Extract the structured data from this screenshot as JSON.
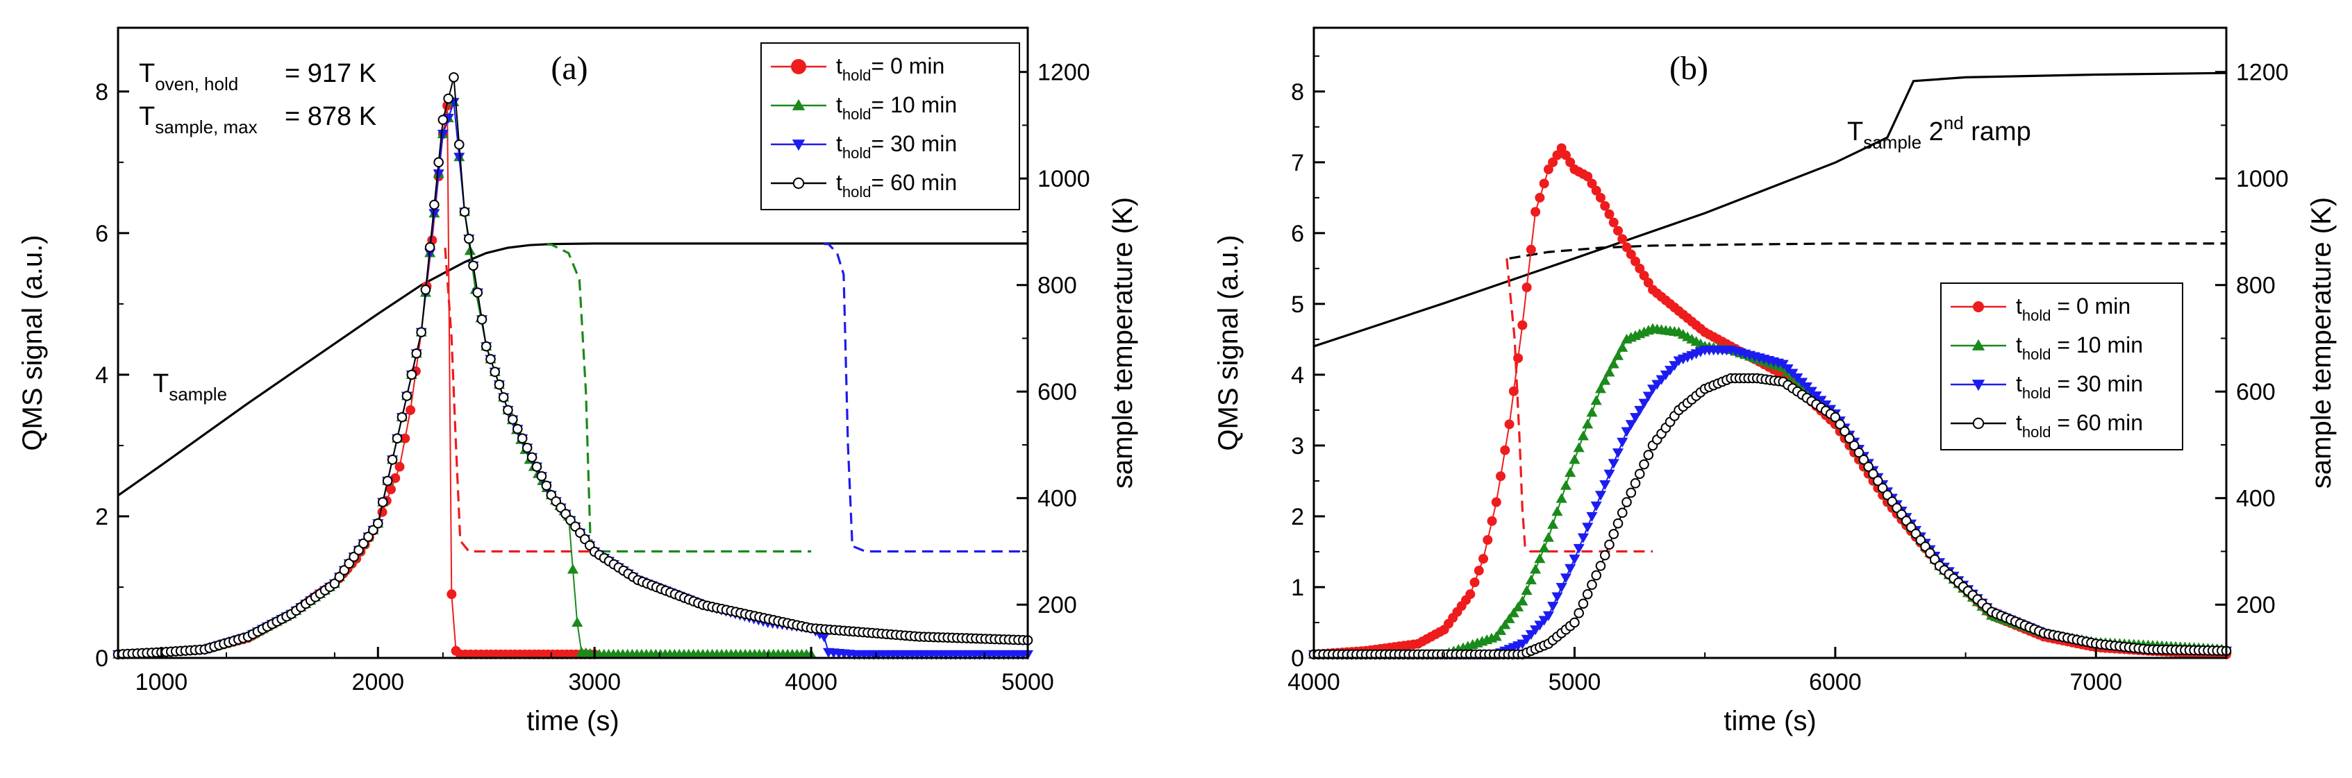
{
  "chart_data": [
    {
      "panel_label": "(a)",
      "type": "scatter",
      "xlabel": "time (s)",
      "ylabel": "QMS signal (a.u.)",
      "y2label": "sample temperature (K)",
      "xlim": [
        800,
        5000
      ],
      "ylim": [
        0,
        8.9
      ],
      "y2lim": [
        100,
        1283
      ],
      "xticks": [
        1000,
        2000,
        3000,
        4000,
        5000
      ],
      "yticks": [
        0,
        2,
        4,
        6,
        8
      ],
      "y2ticks": [
        200,
        400,
        600,
        800,
        1000,
        1200
      ],
      "colors": {
        "red": "#ee1c1c",
        "green": "#1a8a1a",
        "blue": "#1c1cf0",
        "black": "#000000"
      },
      "annotations": [
        {
          "id": "oven",
          "main": "T",
          "sub": "oven, hold",
          "rest": "= 917 K"
        },
        {
          "id": "smax",
          "main": "T",
          "sub": "sample, max",
          "rest": "= 878 K"
        },
        {
          "id": "tsample",
          "main": "T",
          "sub": "sample",
          "rest": ""
        }
      ],
      "legend": [
        {
          "main": "t",
          "sub": "hold",
          "rest": "=   0 min",
          "color": "#ee1c1c",
          "marker": "circle"
        },
        {
          "main": "t",
          "sub": "hold",
          "rest": "= 10 min",
          "color": "#1a8a1a",
          "marker": "triangle-up"
        },
        {
          "main": "t",
          "sub": "hold",
          "rest": "= 30 min",
          "color": "#1c1cf0",
          "marker": "triangle-down"
        },
        {
          "main": "t",
          "sub": "hold",
          "rest": "= 60 min",
          "color": "#000000",
          "marker": "open-circle"
        }
      ],
      "temperature_curves": [
        {
          "name": "T_sample",
          "color": "#000000",
          "dash": "solid",
          "x": [
            800,
            1000,
            1200,
            1400,
            1600,
            1800,
            2000,
            2200,
            2400,
            2500,
            2600,
            2700,
            2800,
            3000,
            3500,
            4000,
            4500,
            5000
          ],
          "y": [
            405,
            462,
            520,
            578,
            634,
            690,
            746,
            800,
            843,
            860,
            870,
            875,
            877,
            878,
            878,
            878,
            878,
            878
          ]
        },
        {
          "name": "0 min",
          "color": "#ee1c1c",
          "dash": "dashed",
          "x": [
            2310,
            2340,
            2360,
            2380,
            2420,
            3000
          ],
          "y": [
            870,
            700,
            500,
            320,
            300,
            300
          ]
        },
        {
          "name": "10 min",
          "color": "#1a8a1a",
          "dash": "dashed",
          "x": [
            2780,
            2800,
            2880,
            2930,
            2960,
            2980,
            3000,
            4000
          ],
          "y": [
            876,
            876,
            860,
            810,
            600,
            330,
            300,
            300
          ]
        },
        {
          "name": "30 min",
          "color": "#1c1cf0",
          "dash": "dashed",
          "x": [
            4060,
            4080,
            4120,
            4150,
            4170,
            4190,
            4250,
            5000
          ],
          "y": [
            877,
            877,
            860,
            820,
            500,
            310,
            300,
            300
          ]
        }
      ],
      "series": [
        {
          "name": "0 min",
          "color": "#ee1c1c",
          "marker": "circle",
          "x": [
            800,
            1000,
            1200,
            1400,
            1500,
            1600,
            1700,
            1800,
            1900,
            2000,
            2100,
            2150,
            2200,
            2250,
            2280,
            2300,
            2320,
            2340,
            2360,
            2380,
            2500,
            2700,
            3000
          ],
          "y": [
            0.05,
            0.08,
            0.12,
            0.28,
            0.45,
            0.62,
            0.85,
            1.05,
            1.4,
            1.9,
            2.7,
            3.5,
            4.6,
            5.9,
            6.8,
            7.4,
            7.8,
            0.9,
            0.1,
            0.05,
            0.05,
            0.05,
            0.05
          ]
        },
        {
          "name": "10 min",
          "color": "#1a8a1a",
          "marker": "triangle-up",
          "x": [
            800,
            1000,
            1200,
            1400,
            1600,
            1800,
            2000,
            2200,
            2300,
            2350,
            2400,
            2450,
            2500,
            2600,
            2700,
            2800,
            2880,
            2920,
            2940,
            3000,
            3500,
            4000
          ],
          "y": [
            0.05,
            0.08,
            0.12,
            0.3,
            0.62,
            1.05,
            1.9,
            4.6,
            7.4,
            7.85,
            6.3,
            5.2,
            4.4,
            3.5,
            2.8,
            2.3,
            2.0,
            0.5,
            0.08,
            0.05,
            0.05,
            0.05
          ]
        },
        {
          "name": "30 min",
          "color": "#1c1cf0",
          "marker": "triangle-down",
          "x": [
            800,
            1000,
            1200,
            1400,
            1600,
            1800,
            2000,
            2200,
            2300,
            2350,
            2400,
            2500,
            2600,
            2800,
            3000,
            3200,
            3500,
            3800,
            4000,
            4060,
            4080,
            4200,
            5000
          ],
          "y": [
            0.05,
            0.08,
            0.12,
            0.3,
            0.62,
            1.05,
            1.9,
            4.6,
            7.4,
            7.85,
            6.3,
            4.4,
            3.5,
            2.3,
            1.5,
            1.1,
            0.75,
            0.5,
            0.42,
            0.3,
            0.08,
            0.05,
            0.05
          ]
        },
        {
          "name": "60 min",
          "color": "#000000",
          "marker": "open-circle",
          "x": [
            800,
            1000,
            1200,
            1400,
            1600,
            1800,
            2000,
            2200,
            2300,
            2350,
            2400,
            2500,
            2600,
            2800,
            3000,
            3200,
            3500,
            4000,
            4500,
            5000
          ],
          "y": [
            0.05,
            0.08,
            0.12,
            0.3,
            0.62,
            1.05,
            1.9,
            4.6,
            7.6,
            8.2,
            6.3,
            4.4,
            3.5,
            2.3,
            1.5,
            1.1,
            0.75,
            0.42,
            0.3,
            0.25
          ]
        }
      ]
    },
    {
      "panel_label": "(b)",
      "type": "scatter",
      "xlabel": "time (s)",
      "ylabel": "QMS signal (a.u.)",
      "y2label": "sample temperature (K)",
      "xlim": [
        4000,
        7500
      ],
      "ylim": [
        0,
        8.9
      ],
      "y2lim": [
        100,
        1283
      ],
      "xticks": [
        4000,
        5000,
        6000,
        7000
      ],
      "yticks": [
        0,
        1,
        2,
        3,
        4,
        5,
        6,
        7,
        8
      ],
      "y2ticks": [
        200,
        400,
        600,
        800,
        1000,
        1200
      ],
      "colors": {
        "red": "#ee1c1c",
        "green": "#1a8a1a",
        "blue": "#1c1cf0",
        "black": "#000000"
      },
      "annotations": [
        {
          "id": "ramp",
          "main": "T",
          "sub": "sample",
          "rest": " 2",
          "sup": "nd",
          "rest2": " ramp"
        }
      ],
      "legend": [
        {
          "main": "t",
          "sub": "hold",
          "rest": " =   0 min",
          "color": "#ee1c1c",
          "marker": "circle"
        },
        {
          "main": "t",
          "sub": "hold",
          "rest": " = 10 min",
          "color": "#1a8a1a",
          "marker": "triangle-up"
        },
        {
          "main": "t",
          "sub": "hold",
          "rest": " = 30 min",
          "color": "#1c1cf0",
          "marker": "triangle-down"
        },
        {
          "main": "t",
          "sub": "hold",
          "rest": " = 60 min",
          "color": "#000000",
          "marker": "open-circle"
        }
      ],
      "temperature_curves": [
        {
          "name": "T_sample 2nd ramp",
          "color": "#000000",
          "dash": "solid",
          "x": [
            4000,
            4500,
            5000,
            5500,
            6000,
            6200,
            6300,
            6500,
            7000,
            7500
          ],
          "y": [
            685,
            766,
            850,
            935,
            1030,
            1077,
            1183,
            1190,
            1195,
            1198
          ]
        },
        {
          "name": "T_sample hold",
          "color": "#000000",
          "dash": "dashed",
          "x": [
            4750,
            4900,
            5100,
            5300,
            5600,
            6000,
            7000,
            7500
          ],
          "y": [
            850,
            862,
            870,
            874,
            876,
            878,
            878,
            878
          ]
        },
        {
          "name": "0 min",
          "color": "#ee1c1c",
          "dash": "dashed",
          "x": [
            4740,
            4770,
            4790,
            4800,
            4810,
            4830,
            5300
          ],
          "y": [
            850,
            700,
            500,
            380,
            310,
            300,
            300
          ]
        }
      ],
      "series": [
        {
          "name": "0 min",
          "color": "#ee1c1c",
          "marker": "circle",
          "x": [
            4000,
            4200,
            4400,
            4500,
            4600,
            4650,
            4700,
            4750,
            4800,
            4850,
            4900,
            4950,
            5000,
            5050,
            5100,
            5200,
            5300,
            5400,
            5500,
            5600,
            5800,
            6000,
            6200,
            6400,
            6600,
            6800,
            7000,
            7200,
            7500
          ],
          "y": [
            0.05,
            0.1,
            0.2,
            0.4,
            0.9,
            1.4,
            2.2,
            3.3,
            4.7,
            6.3,
            6.9,
            7.2,
            6.9,
            6.8,
            6.5,
            5.8,
            5.2,
            4.9,
            4.6,
            4.4,
            4.0,
            3.3,
            2.2,
            1.3,
            0.6,
            0.3,
            0.15,
            0.1,
            0.05
          ]
        },
        {
          "name": "10 min",
          "color": "#1a8a1a",
          "marker": "triangle-up",
          "x": [
            4000,
            4500,
            4700,
            4800,
            4900,
            5000,
            5100,
            5200,
            5300,
            5400,
            5500,
            5600,
            5800,
            6000,
            6200,
            6400,
            6600,
            6800,
            7000,
            7200,
            7500
          ],
          "y": [
            0.05,
            0.05,
            0.3,
            0.8,
            1.7,
            2.8,
            3.8,
            4.5,
            4.65,
            4.6,
            4.4,
            4.35,
            4.1,
            3.4,
            2.3,
            1.3,
            0.6,
            0.35,
            0.22,
            0.18,
            0.12
          ]
        },
        {
          "name": "30 min",
          "color": "#1c1cf0",
          "marker": "triangle-down",
          "x": [
            4000,
            4700,
            4800,
            4900,
            5000,
            5100,
            5200,
            5300,
            5400,
            5500,
            5600,
            5800,
            6000,
            6200,
            6400,
            6600,
            6800,
            7000,
            7200,
            7500
          ],
          "y": [
            0.05,
            0.05,
            0.2,
            0.6,
            1.4,
            2.3,
            3.2,
            3.8,
            4.2,
            4.35,
            4.35,
            4.15,
            3.45,
            2.35,
            1.35,
            0.65,
            0.35,
            0.2,
            0.12,
            0.1
          ]
        },
        {
          "name": "60 min",
          "color": "#000000",
          "marker": "open-circle",
          "x": [
            4000,
            4800,
            4900,
            5000,
            5100,
            5200,
            5300,
            5400,
            5500,
            5600,
            5700,
            5800,
            6000,
            6200,
            6400,
            6600,
            6800,
            7000,
            7200,
            7500
          ],
          "y": [
            0.05,
            0.05,
            0.2,
            0.5,
            1.3,
            2.2,
            3.0,
            3.5,
            3.8,
            3.95,
            3.95,
            3.9,
            3.4,
            2.3,
            1.3,
            0.65,
            0.35,
            0.2,
            0.12,
            0.1
          ]
        }
      ]
    }
  ]
}
